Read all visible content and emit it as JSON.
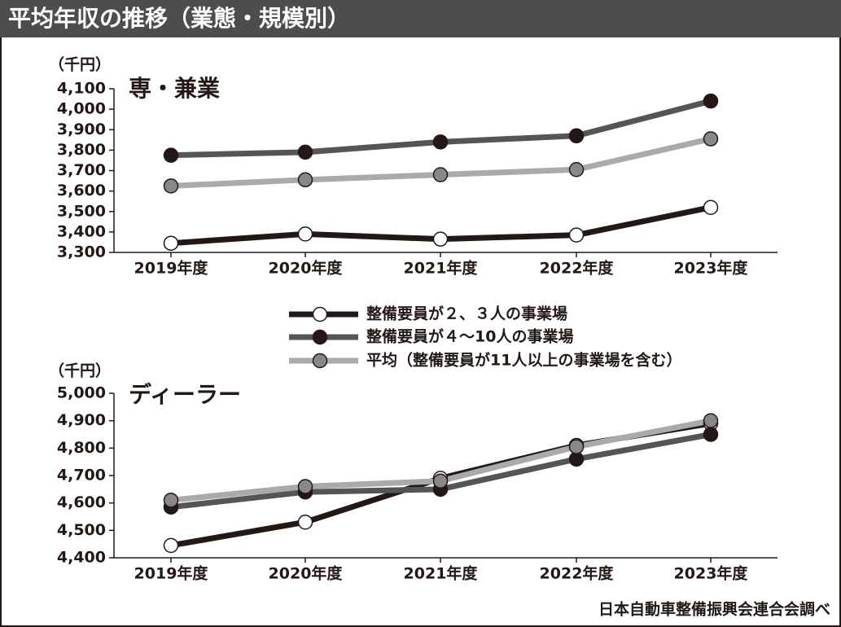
{
  "title": "平均年収の推移（業態・規模別）",
  "source": "日本自動車整備振興会連合会調べ",
  "chart_data": [
    {
      "type": "line",
      "title": "専・兼業",
      "ylabel": "（千円）",
      "categories": [
        "2019年度",
        "2020年度",
        "2021年度",
        "2022年度",
        "2023年度"
      ],
      "ylim": [
        3300,
        4100
      ],
      "yticks": [
        {
          "value": 3300,
          "label": "3,300"
        },
        {
          "value": 3400,
          "label": "3,400"
        },
        {
          "value": 3500,
          "label": "3,500"
        },
        {
          "value": 3600,
          "label": "3,600"
        },
        {
          "value": 3700,
          "label": "3,700"
        },
        {
          "value": 3800,
          "label": "3,800"
        },
        {
          "value": 3900,
          "label": "3,900"
        },
        {
          "value": 4000,
          "label": "4,000"
        },
        {
          "value": 4100,
          "label": "4,100"
        }
      ],
      "series": [
        {
          "name": "整備要員が２、３人の事業場",
          "color": "#231815",
          "marker_color": "#ffffff",
          "values": [
            3345,
            3390,
            3365,
            3385,
            3520
          ]
        },
        {
          "name": "整備要員が４～10人の事業場",
          "color": "#555555",
          "marker_color": "#231815",
          "values": [
            3775,
            3790,
            3840,
            3870,
            4040
          ]
        },
        {
          "name": "平均（整備要員が11人以上の事業場を含む）",
          "color": "#aaaaaa",
          "marker_color": "#888888",
          "values": [
            3625,
            3655,
            3680,
            3705,
            3855
          ]
        }
      ]
    },
    {
      "type": "line",
      "title": "ディーラー",
      "ylabel": "（千円）",
      "categories": [
        "2019年度",
        "2020年度",
        "2021年度",
        "2022年度",
        "2023年度"
      ],
      "ylim": [
        4400,
        5000
      ],
      "yticks": [
        {
          "value": 4400,
          "label": "4,400"
        },
        {
          "value": 4500,
          "label": "4,500"
        },
        {
          "value": 4600,
          "label": "4,600"
        },
        {
          "value": 4700,
          "label": "4,700"
        },
        {
          "value": 4800,
          "label": "4,800"
        },
        {
          "value": 4900,
          "label": "4,900"
        },
        {
          "value": 5000,
          "label": "5,000"
        }
      ],
      "series": [
        {
          "color": "#231815",
          "marker_color": "#ffffff",
          "values": [
            4445,
            4530,
            4690,
            4810,
            4890
          ]
        },
        {
          "color": "#555555",
          "marker_color": "#231815",
          "values": [
            4585,
            4640,
            4650,
            4760,
            4850
          ]
        },
        {
          "color": "#aaaaaa",
          "marker_color": "#888888",
          "values": [
            4610,
            4660,
            4680,
            4805,
            4900
          ]
        }
      ]
    }
  ]
}
